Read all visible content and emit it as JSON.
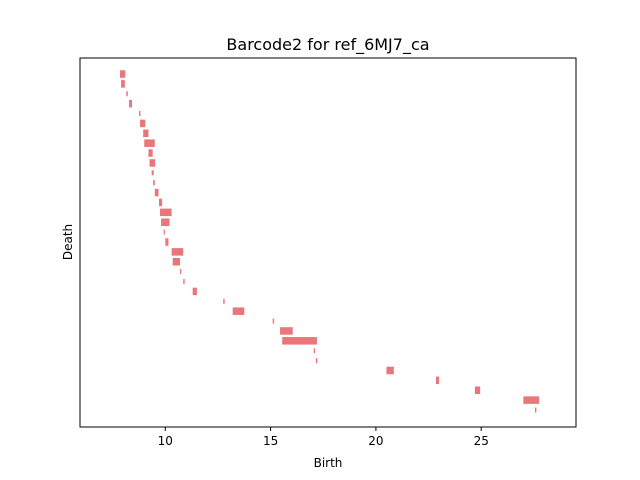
{
  "chart_data": {
    "type": "barcode",
    "title": "Barcode2 for ref_6MJ7_ca",
    "xlabel": "Birth",
    "ylabel": "Death",
    "xlim": [
      5.95,
      29.5
    ],
    "x_ticks": [
      10,
      15,
      20,
      25
    ],
    "y_ticks_visible": false,
    "grid": false,
    "bar_color": "#e8767a",
    "bars": [
      {
        "birth": 7.85,
        "death": 8.1,
        "height": "thick"
      },
      {
        "birth": 7.9,
        "death": 8.08,
        "height": "thick"
      },
      {
        "birth": 8.15,
        "death": 8.22,
        "height": "thin"
      },
      {
        "birth": 8.28,
        "death": 8.42,
        "height": "thick"
      },
      {
        "birth": 8.75,
        "death": 8.82,
        "height": "thin"
      },
      {
        "birth": 8.8,
        "death": 9.05,
        "height": "thick"
      },
      {
        "birth": 8.95,
        "death": 9.2,
        "height": "thick"
      },
      {
        "birth": 9.0,
        "death": 9.5,
        "height": "thick"
      },
      {
        "birth": 9.2,
        "death": 9.4,
        "height": "thick"
      },
      {
        "birth": 9.25,
        "death": 9.52,
        "height": "thick"
      },
      {
        "birth": 9.35,
        "death": 9.45,
        "height": "thin"
      },
      {
        "birth": 9.42,
        "death": 9.5,
        "height": "thin"
      },
      {
        "birth": 9.5,
        "death": 9.68,
        "height": "thick"
      },
      {
        "birth": 9.7,
        "death": 9.85,
        "height": "thick"
      },
      {
        "birth": 9.75,
        "death": 10.3,
        "height": "thick"
      },
      {
        "birth": 9.8,
        "death": 10.2,
        "height": "thick"
      },
      {
        "birth": 9.92,
        "death": 9.98,
        "height": "thin"
      },
      {
        "birth": 10.0,
        "death": 10.15,
        "height": "thick"
      },
      {
        "birth": 10.3,
        "death": 10.85,
        "height": "thick"
      },
      {
        "birth": 10.35,
        "death": 10.7,
        "height": "thick"
      },
      {
        "birth": 10.7,
        "death": 10.76,
        "height": "thin"
      },
      {
        "birth": 10.85,
        "death": 10.92,
        "height": "thin"
      },
      {
        "birth": 11.3,
        "death": 11.5,
        "height": "thick"
      },
      {
        "birth": 12.75,
        "death": 12.82,
        "height": "thin"
      },
      {
        "birth": 13.2,
        "death": 13.75,
        "height": "thick"
      },
      {
        "birth": 15.1,
        "death": 15.17,
        "height": "thin"
      },
      {
        "birth": 15.45,
        "death": 16.05,
        "height": "thick"
      },
      {
        "birth": 15.55,
        "death": 17.2,
        "height": "thick"
      },
      {
        "birth": 17.05,
        "death": 17.11,
        "height": "thin"
      },
      {
        "birth": 17.15,
        "death": 17.22,
        "height": "thin"
      },
      {
        "birth": 20.5,
        "death": 20.85,
        "height": "thick"
      },
      {
        "birth": 22.85,
        "death": 23.0,
        "height": "thick"
      },
      {
        "birth": 24.7,
        "death": 24.95,
        "height": "thick"
      },
      {
        "birth": 27.0,
        "death": 27.75,
        "height": "thick"
      },
      {
        "birth": 27.55,
        "death": 27.62,
        "height": "thin"
      }
    ]
  }
}
